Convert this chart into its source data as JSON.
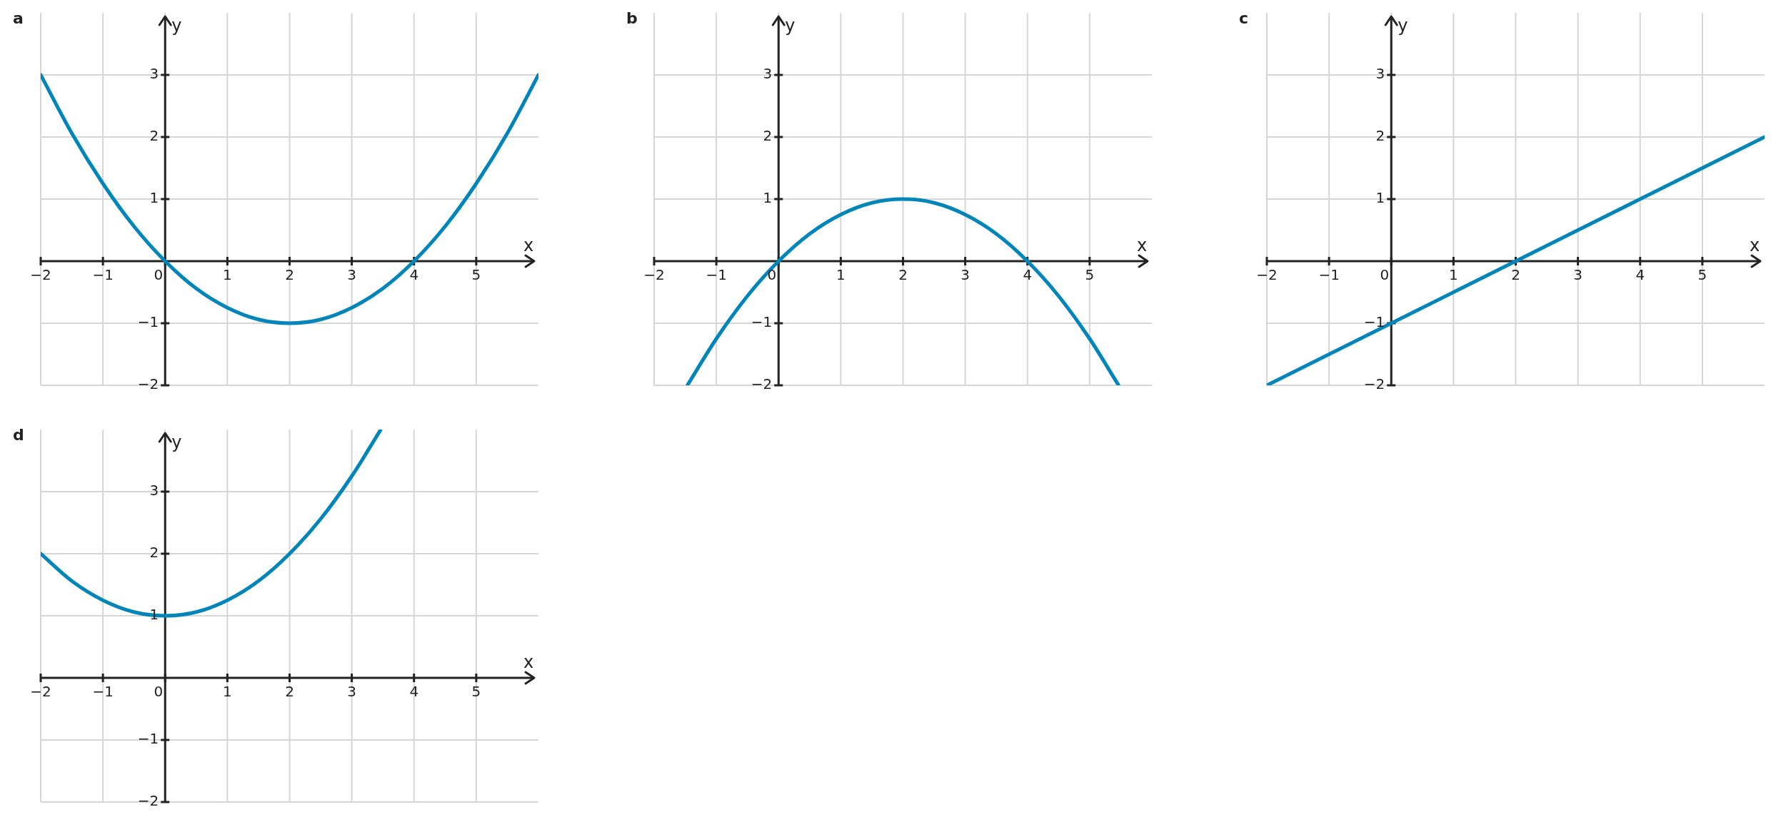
{
  "chart_data": [
    {
      "type": "line",
      "title": "a",
      "xlabel": "x",
      "ylabel": "y",
      "x": [
        -2,
        -1.5,
        -1,
        -0.5,
        0,
        0.5,
        1,
        1.5,
        2,
        2.5,
        3,
        3.5,
        4,
        4.5,
        5,
        5.5,
        6
      ],
      "values": [
        3,
        2.06,
        1.25,
        0.56,
        0,
        -0.44,
        -0.75,
        -0.94,
        -1,
        -0.94,
        -0.75,
        -0.44,
        0,
        0.56,
        1.25,
        2.06,
        3
      ],
      "color": "#0085b9",
      "xlim": [
        -2,
        6
      ],
      "ylim": [
        -2,
        4
      ],
      "xticks": [
        -2,
        -1,
        0,
        1,
        2,
        3,
        4,
        5
      ],
      "yticks": [
        -2,
        -1,
        1,
        2,
        3
      ],
      "grid": true
    },
    {
      "type": "line",
      "title": "b",
      "xlabel": "x",
      "ylabel": "y",
      "x": [
        -1.46,
        -1,
        -0.5,
        0,
        0.5,
        1,
        1.5,
        2,
        2.5,
        3,
        3.5,
        4,
        4.5,
        5,
        5.46
      ],
      "values": [
        -1.99,
        -1.25,
        -0.56,
        0,
        0.44,
        0.75,
        0.94,
        1,
        0.94,
        0.75,
        0.44,
        0,
        -0.56,
        -1.25,
        -1.99
      ],
      "color": "#0085b9",
      "xlim": [
        -2,
        6
      ],
      "ylim": [
        -2,
        4
      ],
      "xticks": [
        -2,
        -1,
        0,
        1,
        2,
        3,
        4,
        5
      ],
      "yticks": [
        -2,
        -1,
        1,
        2,
        3
      ],
      "grid": true
    },
    {
      "type": "line",
      "title": "c",
      "xlabel": "x",
      "ylabel": "y",
      "x": [
        -2,
        0,
        2,
        4,
        6
      ],
      "values": [
        -2,
        -1,
        0,
        1,
        2
      ],
      "color": "#0085b9",
      "xlim": [
        -2,
        6
      ],
      "ylim": [
        -2,
        4
      ],
      "xticks": [
        -2,
        -1,
        0,
        1,
        2,
        3,
        4,
        5
      ],
      "yticks": [
        -2,
        -1,
        1,
        2,
        3
      ],
      "grid": true
    },
    {
      "type": "line",
      "title": "d",
      "xlabel": "x",
      "ylabel": "y",
      "x": [
        -2,
        -1.5,
        -1,
        -0.5,
        0,
        0.5,
        1,
        1.5,
        2,
        2.5,
        3,
        3.46
      ],
      "values": [
        2,
        1.56,
        1.25,
        1.06,
        1,
        1.06,
        1.25,
        1.56,
        2,
        2.56,
        3.25,
        3.99
      ],
      "color": "#0085b9",
      "xlim": [
        -2,
        6
      ],
      "ylim": [
        -2,
        4
      ],
      "xticks": [
        -2,
        -1,
        0,
        1,
        2,
        3,
        4,
        5
      ],
      "yticks": [
        -2,
        -1,
        1,
        2,
        3
      ],
      "grid": true
    }
  ]
}
